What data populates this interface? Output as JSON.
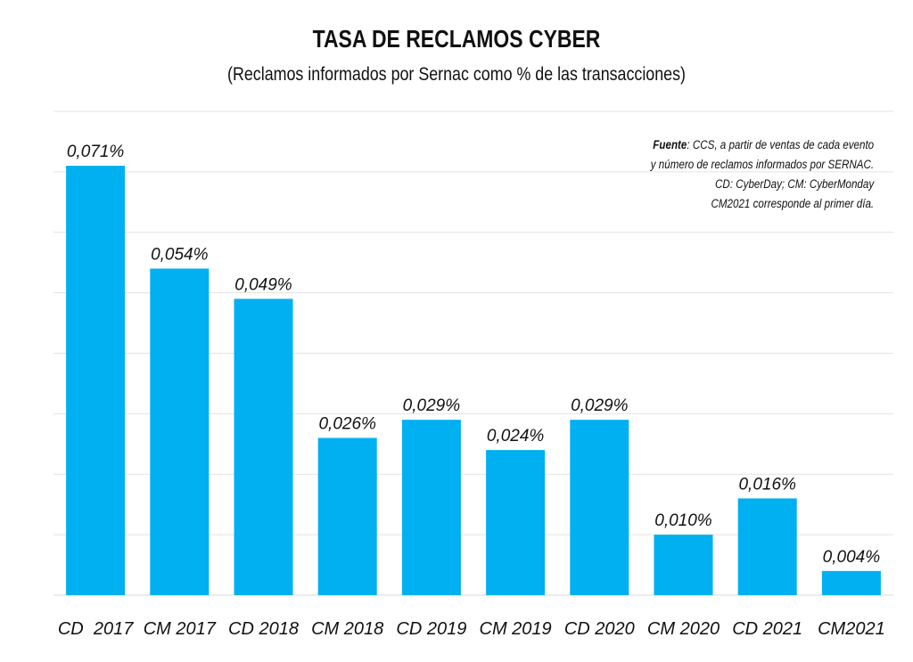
{
  "chart_data": {
    "type": "bar",
    "title": "TASA DE RECLAMOS CYBER",
    "subtitle": "(Reclamos informados por Sernac como % de las transacciones)",
    "categories": [
      "CD  2017",
      "CM 2017",
      "CD 2018",
      "CM 2018",
      "CD 2019",
      "CM 2019",
      "CD 2020",
      "CM 2020",
      "CD 2021",
      "CM2021"
    ],
    "values": [
      0.071,
      0.054,
      0.049,
      0.026,
      0.029,
      0.024,
      0.029,
      0.01,
      0.016,
      0.004
    ],
    "value_labels": [
      "0,071%",
      "0,054%",
      "0,049%",
      "0,026%",
      "0,029%",
      "0,024%",
      "0,029%",
      "0,010%",
      "0,016%",
      "0,004%"
    ],
    "ylim": [
      0,
      0.08
    ],
    "grid": true,
    "bar_color": "#00b0f0",
    "annotation": {
      "source_label": "Fuente",
      "lines": [
        ": CCS, a partir de ventas de cada evento",
        "y  número de reclamos informados por SERNAC.",
        "CD: CyberDay; CM: CyberMonday",
        "CM2021 corresponde al primer día."
      ]
    }
  }
}
